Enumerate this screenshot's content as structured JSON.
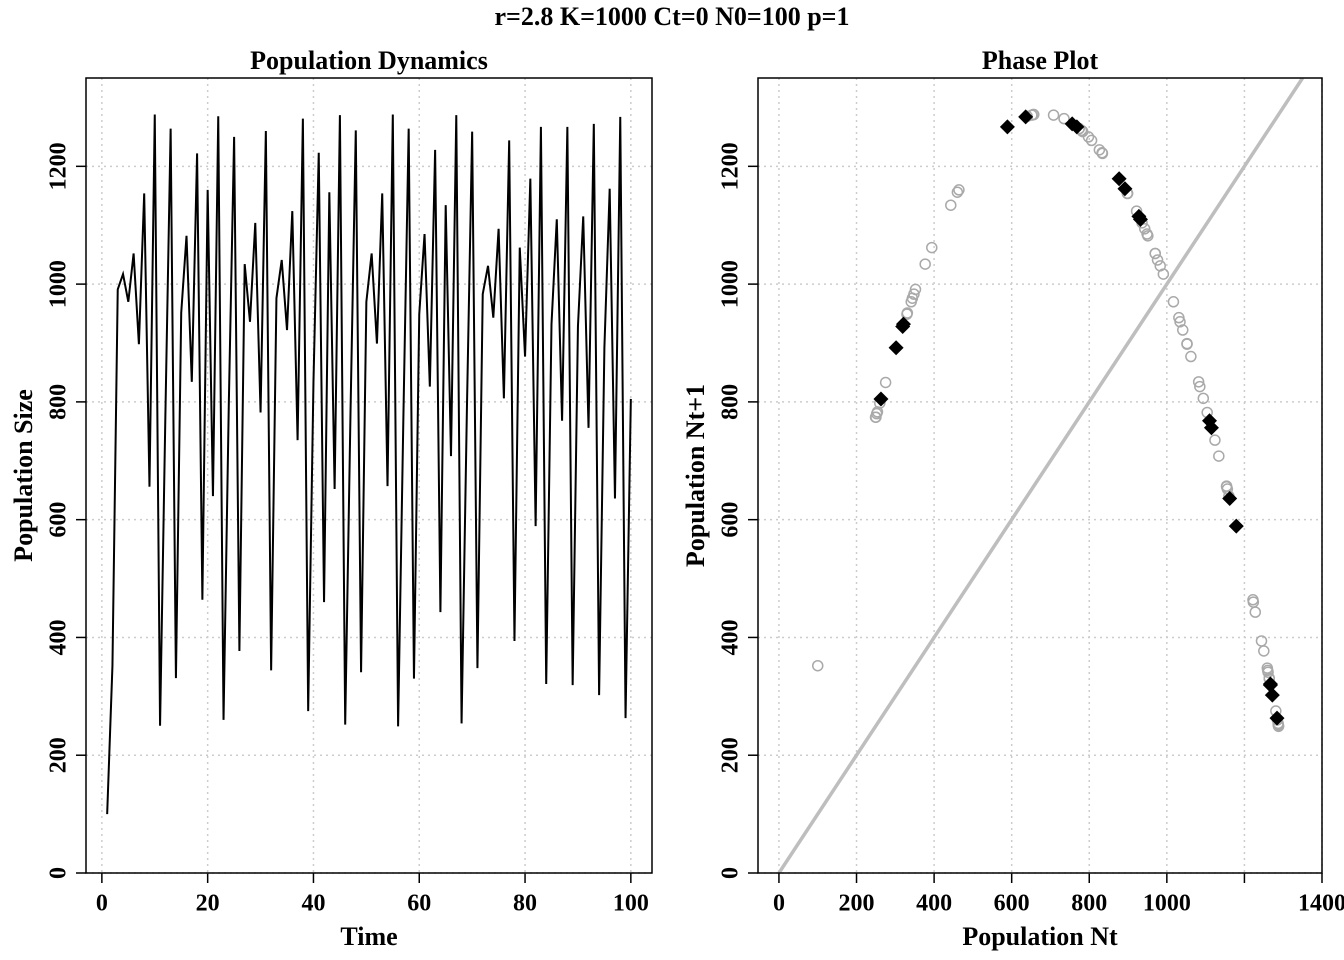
{
  "title": "r=2.8 K=1000 Ct=0 N0=100 p=1",
  "chart_data": [
    {
      "type": "line",
      "title": "Population Dynamics",
      "x_label": "Time",
      "y_label": "Population Size",
      "x": [
        1,
        2,
        3,
        4,
        5,
        6,
        7,
        8,
        9,
        10,
        11,
        12,
        13,
        14,
        15,
        16,
        17,
        18,
        19,
        20,
        21,
        22,
        23,
        24,
        25,
        26,
        27,
        28,
        29,
        30,
        31,
        32,
        33,
        34,
        35,
        36,
        37,
        38,
        39,
        40,
        41,
        42,
        43,
        44,
        45,
        46,
        47,
        48,
        49,
        50,
        51,
        52,
        53,
        54,
        55,
        56,
        57,
        58,
        59,
        60,
        61,
        62,
        63,
        64,
        65,
        66,
        67,
        68,
        69,
        70,
        71,
        72,
        73,
        74,
        75,
        76,
        77,
        78,
        79,
        80,
        81,
        82,
        83,
        84,
        85,
        86,
        87,
        88,
        89,
        90,
        91,
        92,
        93,
        94,
        95,
        96,
        97,
        98,
        99,
        100
      ],
      "values": [
        100,
        352,
        991,
        1017,
        970,
        1052,
        898,
        1154,
        656,
        1288,
        250,
        774,
        1264,
        331,
        951,
        1082,
        834,
        1222,
        464,
        1160,
        640,
        1285,
        260,
        798,
        1250,
        377,
        1034,
        936,
        1104,
        782,
        1260,
        344,
        976,
        1041,
        922,
        1124,
        735,
        1281,
        275,
        833,
        1223,
        460,
        1156,
        652,
        1287,
        252,
        780,
        1261,
        341,
        970,
        1052,
        899,
        1154,
        657,
        1288,
        249,
        774,
        1264,
        330,
        949,
        1085,
        826,
        1228,
        443,
        1134,
        708,
        1287,
        254,
        783,
        1259,
        348,
        983,
        1031,
        943,
        1094,
        806,
        1244,
        394,
        1062,
        877,
        1179,
        589,
        1267,
        321,
        932,
        1110,
        768,
        1267,
        319,
        928,
        1115,
        756,
        1272,
        302,
        892,
        1162,
        636,
        1284,
        263,
        805
      ],
      "color": "#000000",
      "xlim": [
        -3,
        104
      ],
      "ylim": [
        0,
        1350
      ],
      "xticks": [
        0,
        20,
        40,
        60,
        80,
        100
      ],
      "yticks": [
        0,
        200,
        400,
        600,
        800,
        1000,
        1200
      ],
      "grid": true
    },
    {
      "type": "scatter",
      "title": "Phase Plot",
      "x_label": "Population Nt",
      "y_label": "Population Nt+1",
      "series": [
        {
          "color": "#a9a9a9",
          "marker": "circle-open",
          "x": [
            100,
            352,
            991,
            1017,
            970,
            1052,
            898,
            1154,
            656,
            1288,
            250,
            774,
            1264,
            331,
            951,
            1082,
            834,
            1222,
            464,
            1160,
            640,
            1285,
            260,
            798,
            1250,
            377,
            1034,
            936,
            1104,
            782,
            1260,
            344,
            976,
            1041,
            922,
            1124,
            735,
            1281,
            275,
            833,
            1223,
            460,
            1156,
            652,
            1287,
            252,
            780,
            1261,
            341,
            970,
            1052,
            899,
            1154,
            657,
            1288,
            249,
            774,
            1264,
            330,
            949,
            1085,
            826,
            1228,
            443,
            1134,
            708,
            1287,
            254,
            783,
            1259,
            348,
            983,
            1031,
            943,
            1094,
            806,
            1244,
            394,
            1062
          ],
          "values": [
            352,
            991,
            1017,
            970,
            1052,
            898,
            1154,
            656,
            1288,
            250,
            774,
            1264,
            331,
            951,
            1082,
            834,
            1222,
            464,
            1160,
            640,
            1285,
            260,
            798,
            1250,
            377,
            1034,
            936,
            1104,
            782,
            1260,
            344,
            976,
            1041,
            922,
            1124,
            735,
            1281,
            275,
            833,
            1223,
            460,
            1156,
            652,
            1287,
            252,
            780,
            1261,
            341,
            970,
            1052,
            899,
            1154,
            657,
            1288,
            249,
            774,
            1264,
            330,
            949,
            1085,
            826,
            1228,
            443,
            1134,
            708,
            1287,
            254,
            783,
            1259,
            348,
            983,
            1031,
            943,
            1094,
            806,
            1244,
            394,
            1062,
            877
          ]
        },
        {
          "color": "#000000",
          "marker": "diamond",
          "x": [
            877,
            1179,
            589,
            1267,
            321,
            932,
            1110,
            768,
            1267,
            319,
            928,
            1115,
            756,
            1272,
            302,
            892,
            1162,
            636,
            1284,
            263
          ],
          "values": [
            1179,
            589,
            1267,
            321,
            932,
            1110,
            768,
            1267,
            319,
            928,
            1115,
            756,
            1272,
            302,
            892,
            1162,
            636,
            1284,
            263,
            805
          ]
        }
      ],
      "identity_line": true,
      "identity_color": "#bebebe",
      "xlim": [
        -54,
        1400
      ],
      "ylim": [
        0,
        1350
      ],
      "xticks": [
        0,
        200,
        400,
        600,
        800,
        1000,
        {
          "value": 1200
        },
        1400
      ],
      "yticks": [
        0,
        200,
        400,
        600,
        800,
        1000,
        1200
      ],
      "grid": true
    }
  ]
}
